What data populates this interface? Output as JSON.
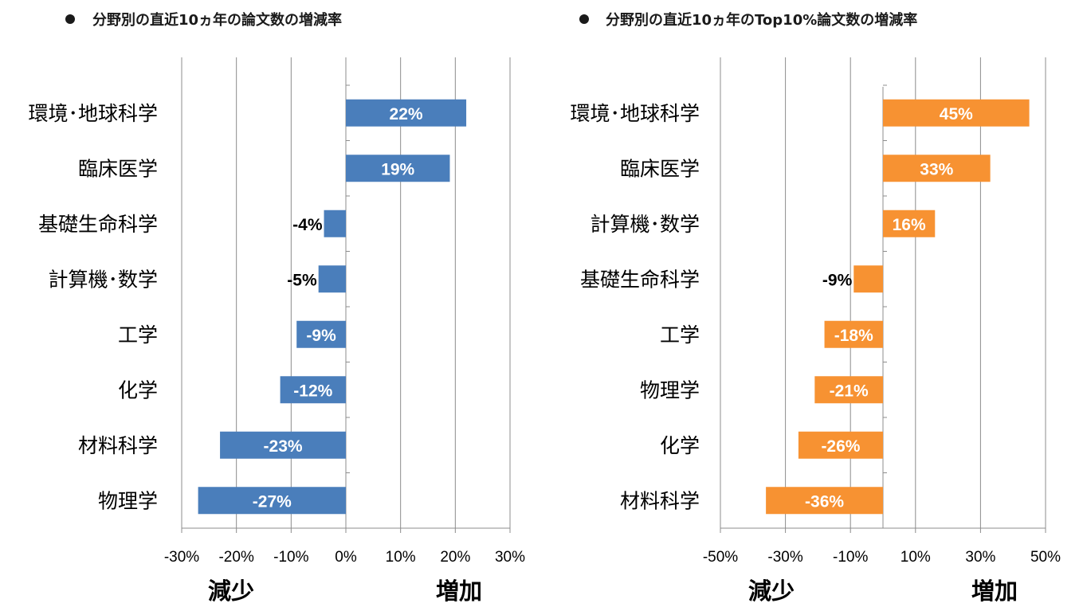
{
  "chart_data": [
    {
      "type": "bar",
      "orientation": "horizontal",
      "title": "分野別の直近10ヵ年の論文数の増減率",
      "categories": [
        "環境･地球科学",
        "臨床医学",
        "基礎生命科学",
        "計算機･数学",
        "工学",
        "化学",
        "材料科学",
        "物理学"
      ],
      "values": [
        22,
        19,
        -4,
        -5,
        -9,
        -12,
        -23,
        -27
      ],
      "data_labels": [
        "22%",
        "19%",
        "-4%",
        "-5%",
        "-9%",
        "-12%",
        "-23%",
        "-27%"
      ],
      "xlim": [
        -30,
        30
      ],
      "ticks": [
        -30,
        -20,
        -10,
        0,
        10,
        20,
        30
      ],
      "tick_labels": [
        "-30%",
        "-20%",
        "-10%",
        "0%",
        "10%",
        "20%",
        "30%"
      ],
      "direction_labels": {
        "negative": "減少",
        "positive": "増加"
      },
      "grid": "vertical",
      "color": "#4a7ebb"
    },
    {
      "type": "bar",
      "orientation": "horizontal",
      "title": "分野別の直近10ヵ年のTop10%論文数の増減率",
      "categories": [
        "環境･地球科学",
        "臨床医学",
        "計算機･数学",
        "基礎生命科学",
        "工学",
        "物理学",
        "化学",
        "材料科学"
      ],
      "values": [
        45,
        33,
        16,
        -9,
        -18,
        -21,
        -26,
        -36
      ],
      "data_labels": [
        "45%",
        "33%",
        "16%",
        "-9%",
        "-18%",
        "-21%",
        "-26%",
        "-36%"
      ],
      "xlim": [
        -50,
        50
      ],
      "ticks": [
        -50,
        -30,
        -10,
        10,
        30,
        50
      ],
      "tick_labels": [
        "-50%",
        "-30%",
        "-10%",
        "10%",
        "30%",
        "50%"
      ],
      "direction_labels": {
        "negative": "減少",
        "positive": "増加"
      },
      "grid": "vertical",
      "color": "#f79232"
    }
  ]
}
